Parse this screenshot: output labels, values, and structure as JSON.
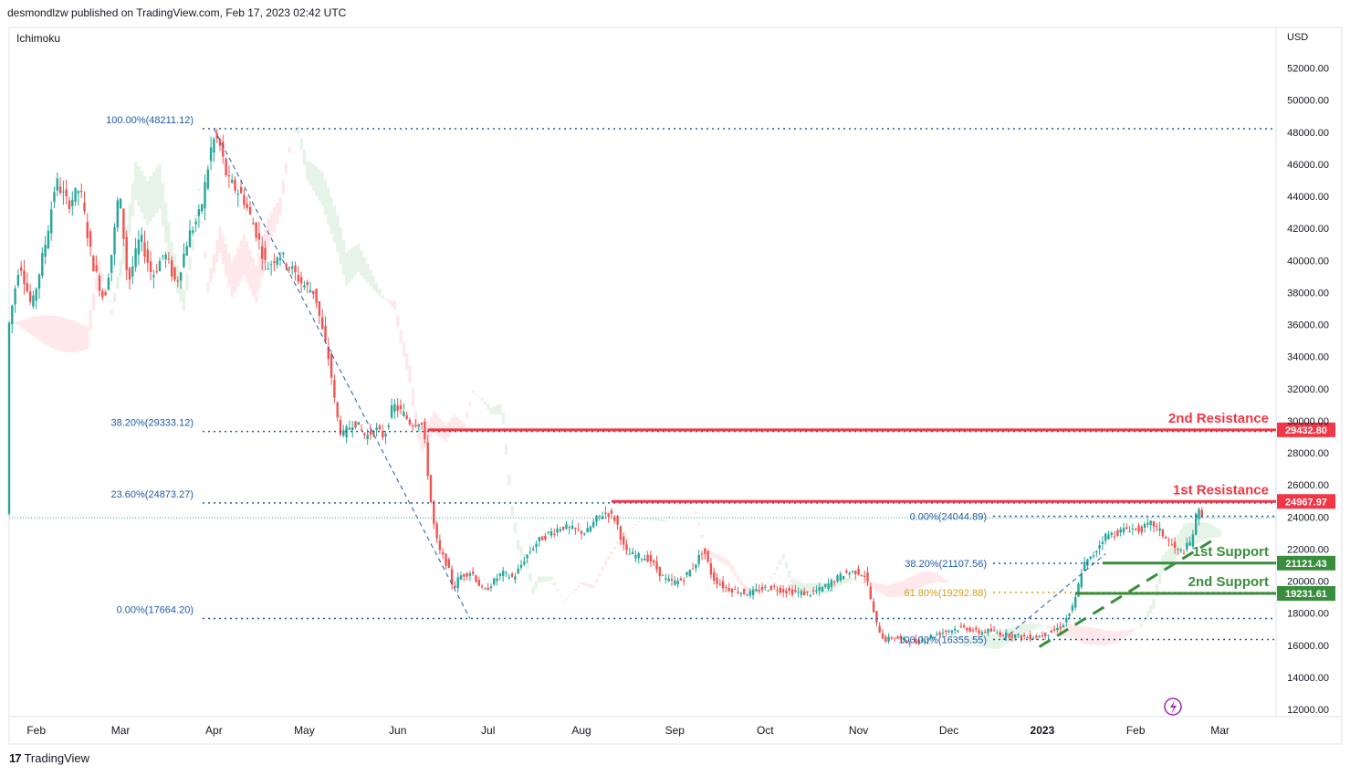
{
  "header": {
    "publisher": "desmondlzw published on TradingView.com, Feb 17, 2023 02:42 UTC"
  },
  "indicator": "Ichimoku",
  "currency": "USD",
  "footer": {
    "brand": "TradingView",
    "logo_icon": "tradingview-logo-icon"
  },
  "colors": {
    "up": "#26a69a",
    "down": "#ef5350",
    "resistance": "#f23645",
    "support": "#388e3c",
    "fib": "#1e5ba8",
    "fib_gold": "#d4a017",
    "axis_text": "#131722",
    "cloud_up": "#c8e6c9",
    "cloud_down": "#ffcdd2"
  },
  "chart_data": {
    "type": "candlestick",
    "ylim": [
      11000,
      54000
    ],
    "y_ticks": [
      "52000.00",
      "50000.00",
      "48000.00",
      "46000.00",
      "44000.00",
      "42000.00",
      "40000.00",
      "38000.00",
      "36000.00",
      "34000.00",
      "32000.00",
      "30000.00",
      "28000.00",
      "26000.00",
      "24000.00",
      "22000.00",
      "20000.00",
      "18000.00",
      "16000.00",
      "14000.00",
      "12000.00"
    ],
    "x_ticks": [
      {
        "label": "Feb",
        "day": 31,
        "bold": false
      },
      {
        "label": "Mar",
        "day": 59,
        "bold": false
      },
      {
        "label": "Apr",
        "day": 90,
        "bold": false
      },
      {
        "label": "May",
        "day": 120,
        "bold": false
      },
      {
        "label": "Jun",
        "day": 151,
        "bold": false
      },
      {
        "label": "Jul",
        "day": 181,
        "bold": false
      },
      {
        "label": "Aug",
        "day": 212,
        "bold": false
      },
      {
        "label": "Sep",
        "day": 243,
        "bold": false
      },
      {
        "label": "Oct",
        "day": 273,
        "bold": false
      },
      {
        "label": "Nov",
        "day": 304,
        "bold": false
      },
      {
        "label": "Dec",
        "day": 334,
        "bold": false
      },
      {
        "label": "2023",
        "day": 365,
        "bold": true
      },
      {
        "label": "Feb",
        "day": 396,
        "bold": false
      },
      {
        "label": "Mar",
        "day": 424,
        "bold": false
      }
    ],
    "price_path": [
      [
        22,
        35500
      ],
      [
        26,
        40000
      ],
      [
        30,
        37000
      ],
      [
        35,
        41500
      ],
      [
        38,
        45000
      ],
      [
        42,
        43500
      ],
      [
        46,
        44500
      ],
      [
        50,
        40000
      ],
      [
        54,
        37500
      ],
      [
        57,
        41000
      ],
      [
        59,
        44500
      ],
      [
        62,
        38500
      ],
      [
        66,
        41500
      ],
      [
        70,
        39000
      ],
      [
        74,
        40500
      ],
      [
        78,
        38500
      ],
      [
        82,
        41500
      ],
      [
        86,
        43000
      ],
      [
        90,
        47500
      ],
      [
        92,
        47500
      ],
      [
        95,
        45000
      ],
      [
        100,
        44000
      ],
      [
        105,
        41500
      ],
      [
        108,
        39500
      ],
      [
        112,
        40500
      ],
      [
        116,
        39500
      ],
      [
        120,
        38500
      ],
      [
        124,
        38000
      ],
      [
        126,
        36000
      ],
      [
        129,
        33500
      ],
      [
        131,
        30500
      ],
      [
        133,
        29000
      ],
      [
        137,
        30000
      ],
      [
        141,
        29000
      ],
      [
        144,
        29500
      ],
      [
        147,
        29000
      ],
      [
        150,
        31000
      ],
      [
        153,
        30500
      ],
      [
        156,
        29800
      ],
      [
        159,
        30000
      ],
      [
        160,
        29500
      ],
      [
        163,
        24000
      ],
      [
        165,
        22000
      ],
      [
        168,
        21000
      ],
      [
        170,
        19500
      ],
      [
        172,
        20300
      ],
      [
        176,
        20600
      ],
      [
        180,
        19300
      ],
      [
        183,
        19900
      ],
      [
        186,
        20500
      ],
      [
        190,
        20200
      ],
      [
        194,
        21500
      ],
      [
        198,
        22500
      ],
      [
        202,
        23000
      ],
      [
        206,
        23400
      ],
      [
        210,
        23200
      ],
      [
        214,
        23000
      ],
      [
        218,
        24000
      ],
      [
        221,
        24300
      ],
      [
        224,
        23800
      ],
      [
        227,
        21800
      ],
      [
        230,
        21600
      ],
      [
        235,
        21400
      ],
      [
        240,
        20100
      ],
      [
        243,
        19900
      ],
      [
        246,
        20100
      ],
      [
        250,
        21000
      ],
      [
        253,
        22000
      ],
      [
        256,
        20200
      ],
      [
        260,
        19600
      ],
      [
        264,
        19400
      ],
      [
        268,
        19200
      ],
      [
        272,
        19500
      ],
      [
        276,
        19600
      ],
      [
        280,
        19400
      ],
      [
        284,
        19300
      ],
      [
        288,
        19200
      ],
      [
        292,
        19500
      ],
      [
        296,
        20000
      ],
      [
        300,
        20500
      ],
      [
        304,
        20600
      ],
      [
        307,
        20300
      ],
      [
        310,
        17500
      ],
      [
        313,
        16300
      ],
      [
        316,
        16500
      ],
      [
        320,
        16300
      ],
      [
        324,
        16200
      ],
      [
        328,
        16500
      ],
      [
        332,
        16800
      ],
      [
        336,
        17000
      ],
      [
        340,
        17100
      ],
      [
        344,
        16800
      ],
      [
        348,
        16900
      ],
      [
        352,
        16700
      ],
      [
        356,
        16600
      ],
      [
        360,
        16500
      ],
      [
        364,
        16550
      ],
      [
        368,
        16800
      ],
      [
        372,
        17200
      ],
      [
        376,
        18500
      ],
      [
        379,
        21000
      ],
      [
        382,
        21500
      ],
      [
        386,
        22800
      ],
      [
        390,
        23000
      ],
      [
        394,
        23300
      ],
      [
        398,
        23200
      ],
      [
        402,
        23600
      ],
      [
        406,
        22800
      ],
      [
        410,
        21900
      ],
      [
        412,
        21800
      ],
      [
        415,
        22500
      ],
      [
        417,
        24500
      ],
      [
        418,
        24200
      ]
    ],
    "fib_left": [
      {
        "label": "100.00%(48211.12)",
        "price": 48211.12
      },
      {
        "label": "38.20%(29333.12)",
        "price": 29333.12
      },
      {
        "label": "23.60%(24873.27)",
        "price": 24873.27
      },
      {
        "label": "0.00%(17664.20)",
        "price": 17664.2
      }
    ],
    "fib_right": [
      {
        "label": "0.00%(24044.89)",
        "price": 24044.89,
        "gold": false
      },
      {
        "label": "38.20%(21107.56)",
        "price": 21107.56,
        "gold": false
      },
      {
        "label": "61.80%(19292.88)",
        "price": 19292.88,
        "gold": true
      },
      {
        "label": "100.00%(16355.55)",
        "price": 16355.55,
        "gold": false
      }
    ],
    "levels": [
      {
        "name": "2nd Resistance",
        "value": "29432.80",
        "price": 29432.8,
        "kind": "resistance",
        "from_day": 161
      },
      {
        "name": "1st Resistance",
        "value": "24967.97",
        "price": 24967.97,
        "kind": "resistance",
        "from_day": 222
      },
      {
        "name": "1st Support",
        "value": "21121.43",
        "price": 21121.43,
        "kind": "support",
        "from_day": 385
      },
      {
        "name": "2nd Support",
        "value": "19231.61",
        "price": 19231.61,
        "kind": "support",
        "from_day": 376
      }
    ],
    "last_price": 23950,
    "trend_line": [
      [
        364,
        15900
      ],
      [
        422,
        22600
      ]
    ],
    "fib_diag_left": [
      [
        90,
        48211
      ],
      [
        175,
        17664
      ]
    ],
    "fib_diag_right": [
      [
        352,
        16356
      ],
      [
        386,
        21700
      ]
    ]
  }
}
